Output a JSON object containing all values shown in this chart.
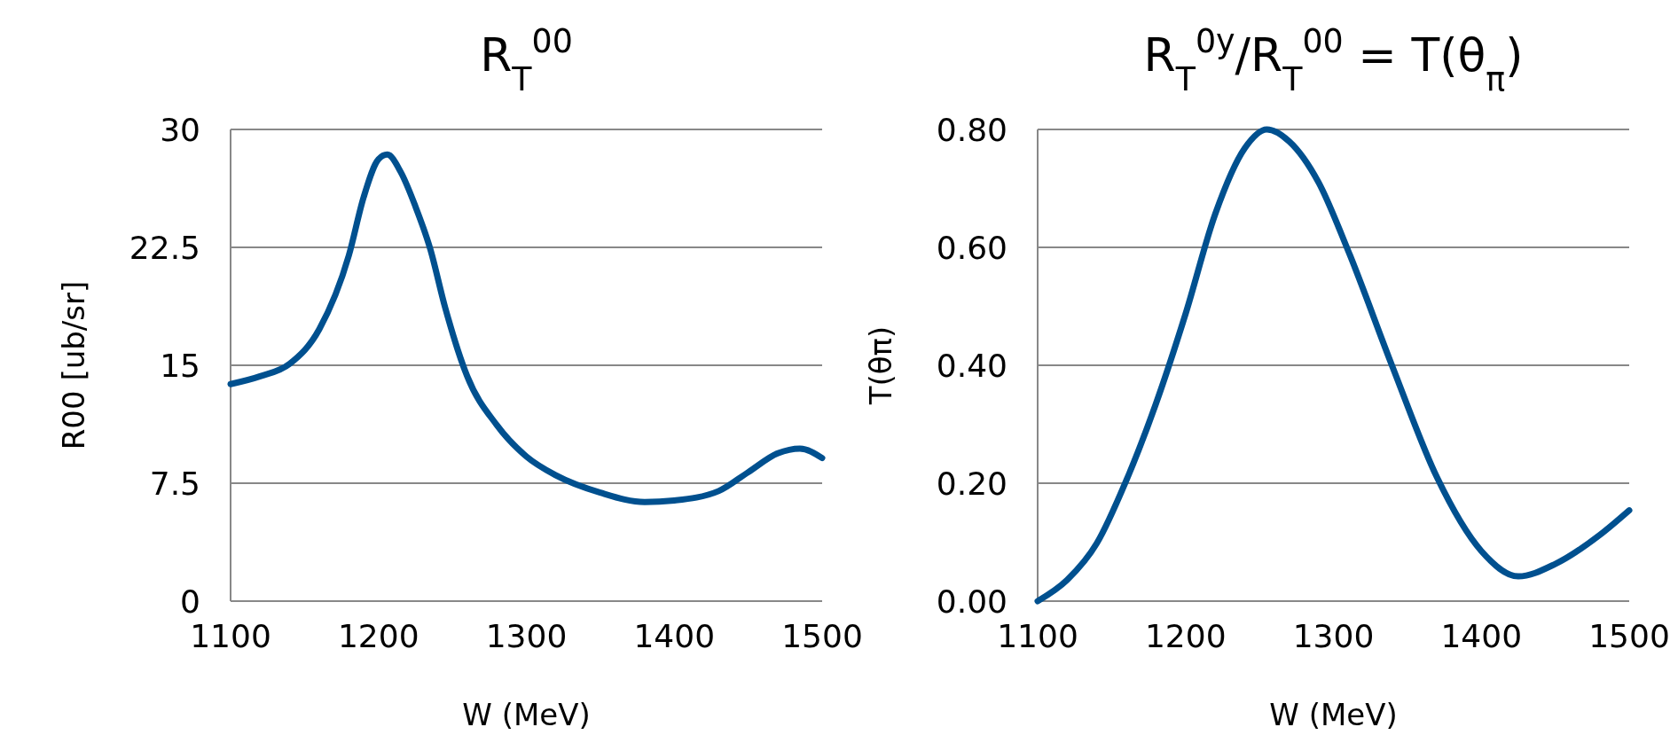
{
  "chart_data": [
    {
      "type": "line",
      "title": "R$_{T}$$^{00}$",
      "xlabel": "W (MeV)",
      "ylabel": "R00 [ub/sr]",
      "x": [
        1100,
        1120,
        1140,
        1160,
        1180,
        1190,
        1200,
        1206,
        1215,
        1225,
        1235,
        1245,
        1260,
        1280,
        1300,
        1320,
        1350,
        1380,
        1400,
        1430,
        1450,
        1470,
        1485,
        1500
      ],
      "series": [
        {
          "color": "#00508f",
          "values": [
            13.8,
            14.3,
            15.1,
            17.3,
            22.0,
            25.7,
            28.1,
            28.4,
            27.3,
            25.1,
            22.4,
            18.7,
            14.3,
            11.2,
            9.2,
            8.0,
            6.9,
            6.3,
            6.4,
            7.0,
            8.2,
            9.4,
            9.7,
            9.1
          ]
        }
      ],
      "xlim": [
        1100,
        1500
      ],
      "xticks": [
        1100,
        1200,
        1300,
        1400,
        1500
      ],
      "ylim": [
        0,
        30
      ],
      "yticks": [
        0,
        7.5,
        15,
        22.5,
        30
      ],
      "grid": "y",
      "legend": false,
      "marker": "none",
      "line_style": "solid"
    },
    {
      "type": "line",
      "title": "R$_{T}$$^{0y}$/R$_{T}$$^{00}$ = T(θ$_{π}$)",
      "xlabel": "W (MeV)",
      "ylabel": "T(θπ)",
      "x": [
        1100,
        1120,
        1140,
        1160,
        1180,
        1200,
        1220,
        1240,
        1255,
        1270,
        1290,
        1310,
        1340,
        1370,
        1400,
        1425,
        1450,
        1480,
        1500
      ],
      "series": [
        {
          "color": "#00508f",
          "values": [
            0.0,
            0.036,
            0.098,
            0.205,
            0.335,
            0.487,
            0.656,
            0.768,
            0.8,
            0.78,
            0.71,
            0.594,
            0.397,
            0.21,
            0.085,
            0.042,
            0.063,
            0.112,
            0.154
          ]
        }
      ],
      "xlim": [
        1100,
        1500
      ],
      "xticks": [
        1100,
        1200,
        1300,
        1400,
        1500
      ],
      "ylim": [
        0,
        0.8
      ],
      "yticks": [
        {
          "value": 0,
          "label": "0.00"
        },
        {
          "value": 0.2,
          "label": "0.20"
        },
        {
          "value": 0.4,
          "label": "0.40"
        },
        {
          "value": 0.6,
          "label": "0.60"
        },
        {
          "value": 0.8,
          "label": "0.80"
        }
      ],
      "grid": "y",
      "legend": false,
      "marker": "none",
      "line_style": "solid"
    }
  ]
}
